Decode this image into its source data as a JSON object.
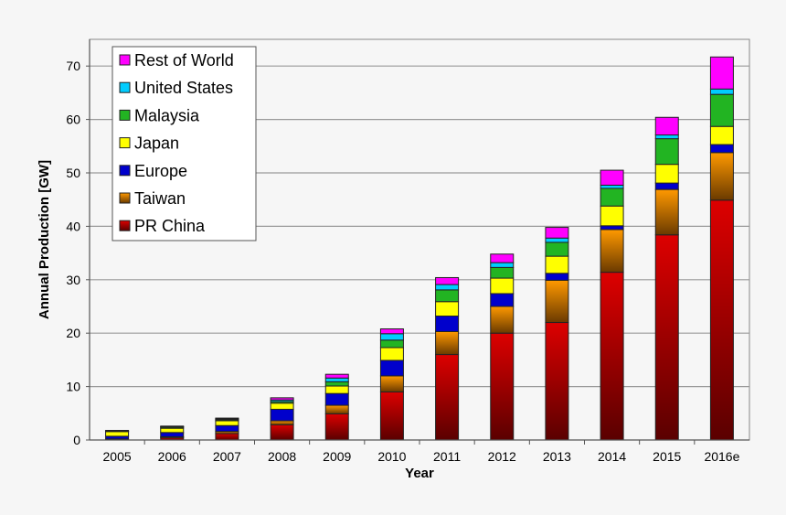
{
  "chart_data": {
    "type": "bar",
    "stacked": true,
    "title": "",
    "xlabel": "Year",
    "ylabel": "Annual Production [GW]",
    "ylim": [
      0,
      75
    ],
    "yticks": [
      0,
      10,
      20,
      30,
      40,
      50,
      60,
      70
    ],
    "grid": true,
    "legend_position": "top-left",
    "categories": [
      "2005",
      "2006",
      "2007",
      "2008",
      "2009",
      "2010",
      "2011",
      "2012",
      "2013",
      "2014",
      "2015",
      "2016e"
    ],
    "series": [
      {
        "name": "PR China",
        "color": "#dd0000",
        "color_dark": "#5a0000",
        "values": [
          0.1,
          0.4,
          1.2,
          2.85,
          4.9,
          9.0,
          16.0,
          20.0,
          22.0,
          31.4,
          38.4,
          44.9
        ]
      },
      {
        "name": "Taiwan",
        "color": "#ff9900",
        "color_dark": "#6a3a00",
        "values": [
          0.1,
          0.2,
          0.4,
          0.75,
          1.6,
          3.0,
          4.3,
          5.0,
          7.9,
          8.0,
          8.5,
          8.9
        ]
      },
      {
        "name": "Europe",
        "color": "#0000cc",
        "values": [
          0.5,
          0.8,
          1.1,
          2.15,
          2.2,
          2.9,
          2.9,
          2.4,
          1.3,
          0.7,
          1.2,
          1.5
        ]
      },
      {
        "name": "Japan",
        "color": "#ffff00",
        "values": [
          0.9,
          0.8,
          0.9,
          1.15,
          1.4,
          2.4,
          2.7,
          2.9,
          3.2,
          3.7,
          3.5,
          3.4
        ]
      },
      {
        "name": "Malaysia",
        "color": "#22b422",
        "values": [
          0.05,
          0.2,
          0.2,
          0.3,
          0.8,
          1.4,
          2.2,
          2.0,
          2.6,
          3.3,
          4.8,
          6.0
        ]
      },
      {
        "name": "United States",
        "color": "#00ccff",
        "values": [
          0.05,
          0.1,
          0.15,
          0.3,
          0.7,
          1.2,
          1.0,
          0.9,
          0.8,
          0.6,
          0.7,
          1.0
        ]
      },
      {
        "name": "Rest of World",
        "color": "#ff00ff",
        "values": [
          0.1,
          0.1,
          0.15,
          0.4,
          0.7,
          0.9,
          1.3,
          1.6,
          2.0,
          2.8,
          3.3,
          6.0
        ]
      }
    ]
  }
}
